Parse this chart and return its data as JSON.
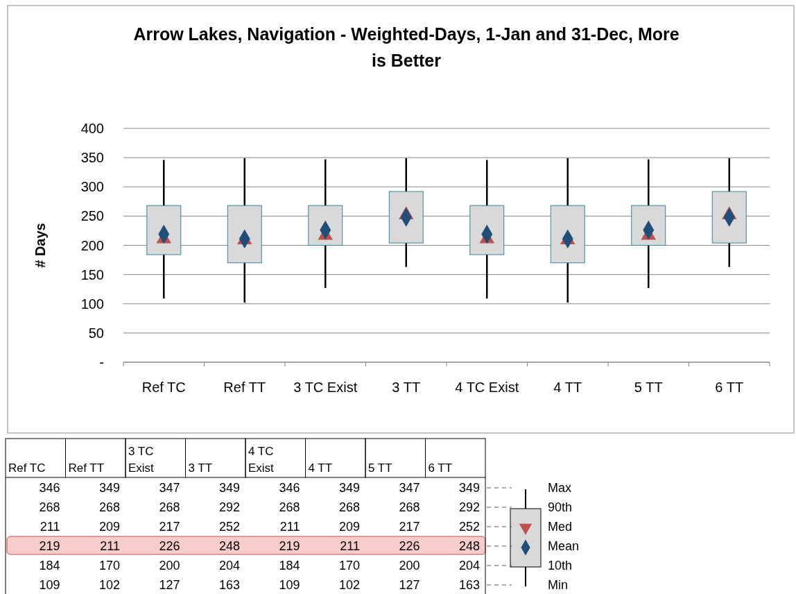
{
  "chart_data": {
    "type": "box",
    "title": "Arrow Lakes, Navigation - Weighted-Days,  1-Jan and 31-Dec, More is Better",
    "ylabel": "# Days",
    "categories": [
      "Ref TC",
      "Ref TT",
      "3 TC Exist",
      "3 TT",
      "4 TC Exist",
      "4 TT",
      "5 TT",
      "6 TT"
    ],
    "boxes": [
      {
        "low": 109,
        "q1": 184,
        "median": 211,
        "q3": 268,
        "high": 346,
        "mean": 219
      },
      {
        "low": 102,
        "q1": 170,
        "median": 209,
        "q3": 268,
        "high": 349,
        "mean": 211
      },
      {
        "low": 127,
        "q1": 200,
        "median": 217,
        "q3": 268,
        "high": 347,
        "mean": 226
      },
      {
        "low": 163,
        "q1": 204,
        "median": 252,
        "q3": 292,
        "high": 349,
        "mean": 248
      },
      {
        "low": 109,
        "q1": 184,
        "median": 211,
        "q3": 268,
        "high": 346,
        "mean": 219
      },
      {
        "low": 102,
        "q1": 170,
        "median": 209,
        "q3": 268,
        "high": 349,
        "mean": 211
      },
      {
        "low": 127,
        "q1": 200,
        "median": 217,
        "q3": 268,
        "high": 347,
        "mean": 226
      },
      {
        "low": 163,
        "q1": 204,
        "median": 252,
        "q3": 292,
        "high": 349,
        "mean": 248
      }
    ],
    "color": "#d9d9d9",
    "ylim": [
      0,
      400
    ],
    "yticks": [
      {
        "value": 0,
        "label": "-"
      },
      50,
      100,
      150,
      200,
      250,
      300,
      350,
      400
    ],
    "grid": "y",
    "data_labels": true,
    "value_labels": [
      [
        "346",
        "268",
        "211",
        "219",
        "184",
        "109"
      ],
      [
        "349",
        "268",
        "209",
        "211",
        "170",
        "102"
      ],
      [
        "347",
        "268",
        "217",
        "226",
        "200",
        "127"
      ],
      [
        "349",
        "292",
        "252",
        "248",
        "204",
        "163"
      ],
      [
        "346",
        "268",
        "211",
        "219",
        "184",
        "109"
      ],
      [
        "349",
        "268",
        "209",
        "211",
        "170",
        "102"
      ],
      [
        "347",
        "268",
        "217",
        "226",
        "200",
        "127"
      ],
      [
        "349",
        "292",
        "252",
        "248",
        "204",
        "163"
      ]
    ],
    "annotations": [
      "Max",
      "90th",
      "Med",
      "Mean",
      "10th",
      "Min"
    ]
  }
}
